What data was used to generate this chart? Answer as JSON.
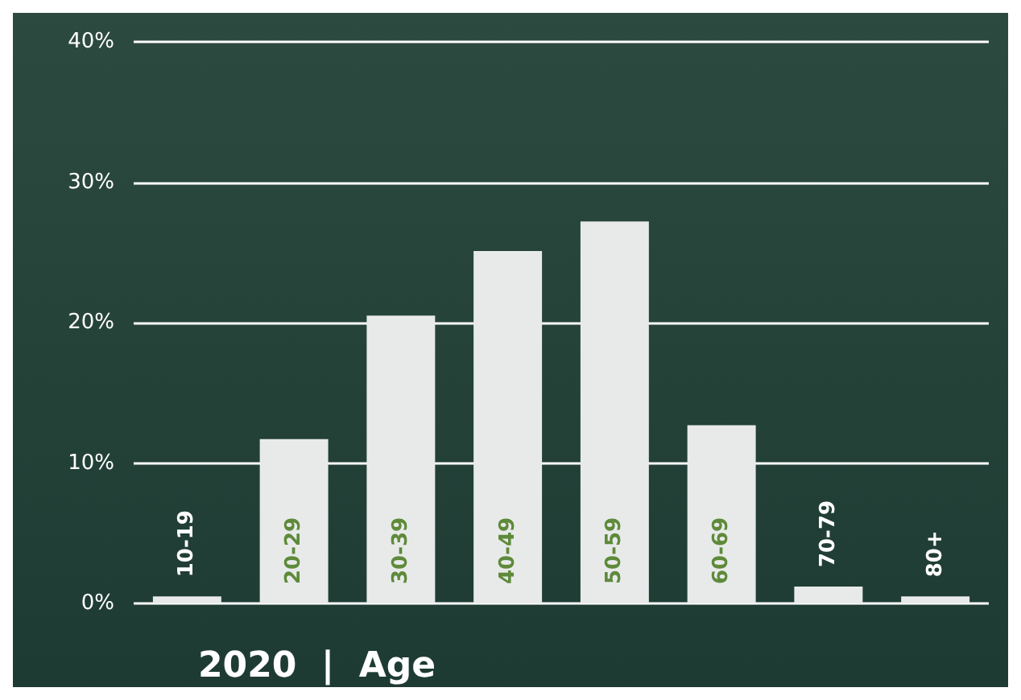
{
  "chart_data": {
    "type": "bar",
    "xlabel": "2020  |  Age",
    "categories": [
      "10-19",
      "20-29",
      "30-39",
      "40-49",
      "50-59",
      "60-69",
      "70-79",
      "80+"
    ],
    "values": [
      0.5,
      11.7,
      20.5,
      25.1,
      27.2,
      12.7,
      1.2,
      0.5
    ],
    "color": "#e8eaea",
    "ylim": [
      0,
      40
    ],
    "yticks": [
      {
        "value": 0,
        "label": "0%"
      },
      {
        "value": 10,
        "label": "10%"
      },
      {
        "value": 20,
        "label": "20%"
      },
      {
        "value": 30,
        "label": "30%"
      },
      {
        "value": 40,
        "label": "40%"
      }
    ],
    "grid": "y"
  }
}
